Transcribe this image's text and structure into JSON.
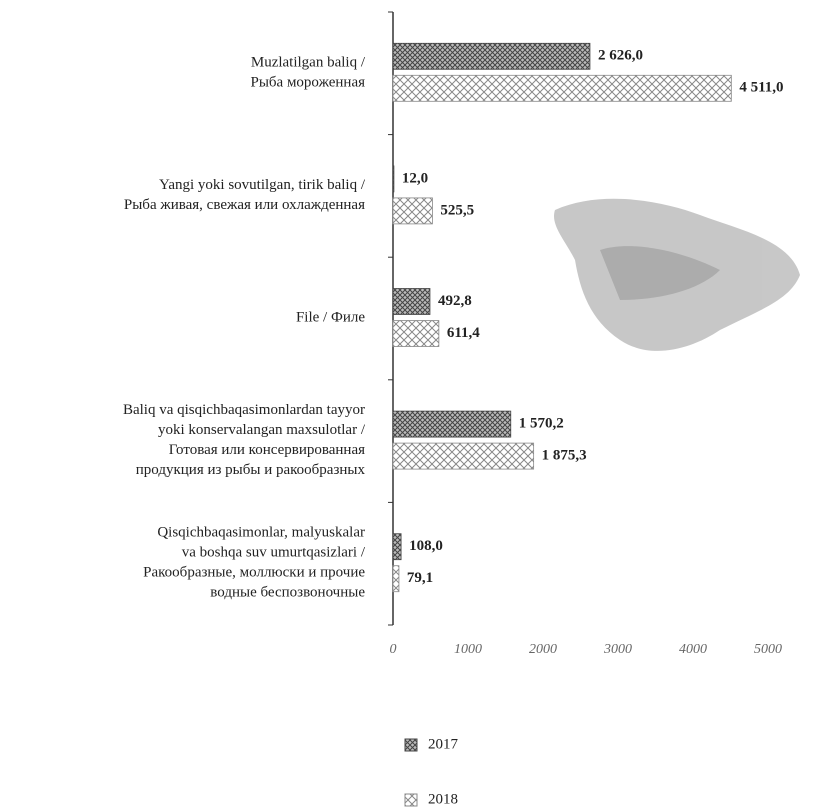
{
  "chart_data": {
    "type": "bar",
    "orientation": "horizontal",
    "categories": [
      [
        "Muzlatilgan baliq /",
        "Рыба мороженная"
      ],
      [
        "Yangi yoki sovutilgan, tirik baliq /",
        "Рыба живая, свежая или охлажденная"
      ],
      [
        "File / Филе"
      ],
      [
        "Baliq va qisqichbaqasimonlardan tayyor",
        "yoki konservalangan maxsulotlar /",
        "Готовая или консервированная",
        "продукция из рыбы и ракообразных"
      ],
      [
        "Qisqichbaqasimonlar, malyuskalar",
        "va boshqa suv umurtqasizlari /",
        "Ракообразные, моллюски и прочие",
        "водные беспозвоночные"
      ]
    ],
    "series": [
      {
        "name": "2017",
        "color": "#444444",
        "values": [
          2626.0,
          12.0,
          492.8,
          1570.2,
          108.0
        ],
        "value_labels": [
          "2 626,0",
          "12,0",
          "492,8",
          "1 570,2",
          "108,0"
        ]
      },
      {
        "name": "2018",
        "color": "#888888",
        "values": [
          4511.0,
          525.5,
          611.4,
          1875.3,
          79.1
        ],
        "value_labels": [
          "4 511,0",
          "525,5",
          "611,4",
          "1 875,3",
          "79,1"
        ]
      }
    ],
    "xlim": [
      0,
      5000
    ],
    "xticks": [
      0,
      1000,
      2000,
      3000,
      4000,
      5000
    ]
  }
}
